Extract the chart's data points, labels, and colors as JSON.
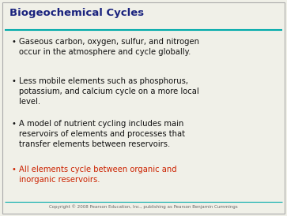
{
  "title": "Biogeochemical Cycles",
  "title_color": "#1a237e",
  "title_fontsize": 9.5,
  "background_color": "#f0f0e8",
  "border_color": "#aaaaaa",
  "line_color": "#00aaaa",
  "bullet_char": "•",
  "bullets": [
    {
      "text": "Gaseous carbon, oxygen, sulfur, and nitrogen\noccur in the atmosphere and cycle globally.",
      "color": "#111111"
    },
    {
      "text": "Less mobile elements such as phosphorus,\npotassium, and calcium cycle on a more local\nlevel.",
      "color": "#111111"
    },
    {
      "text": "A model of nutrient cycling includes main\nreservoirs of elements and processes that\ntransfer elements between reservoirs.",
      "color": "#111111"
    },
    {
      "text": "All elements cycle between organic and\ninorganic reservoirs.",
      "color": "#cc2200"
    }
  ],
  "copyright_text": "Copyright © 2008 Pearson Education, Inc., publishing as Pearson Benjamin Cummings",
  "copyright_color": "#666666",
  "copyright_fontsize": 4.0,
  "bullet_fontsize": 7.2,
  "font_family": "DejaVu Sans"
}
